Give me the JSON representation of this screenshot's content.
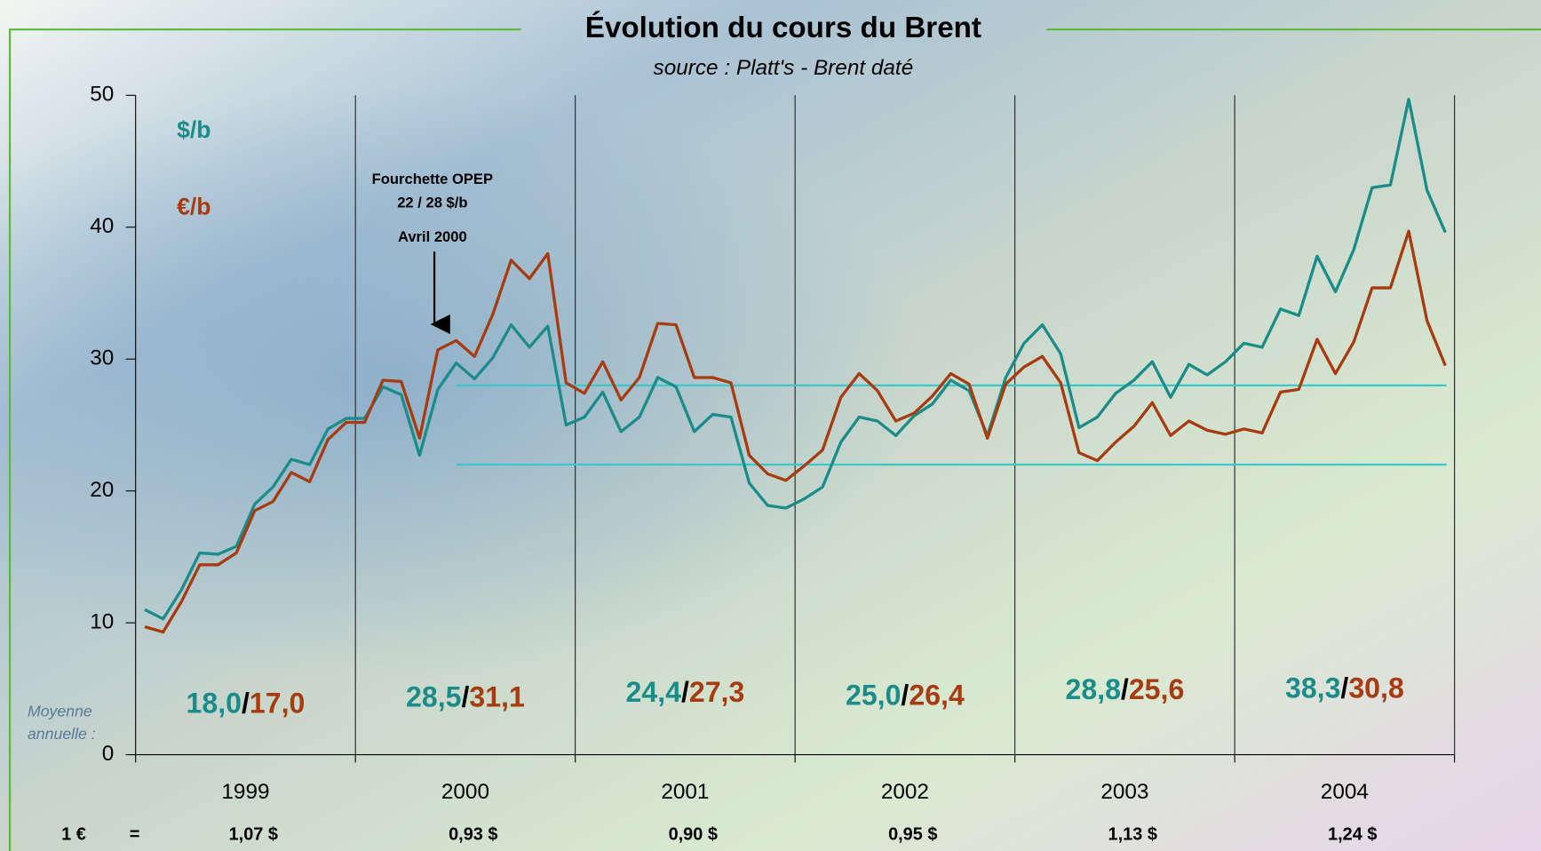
{
  "chart_data": {
    "type": "line",
    "title": "Évolution du cours du Brent",
    "subtitle": "source : Platt's - Brent daté",
    "categories": [
      "1999",
      "2000",
      "2001",
      "2002",
      "2003",
      "2004"
    ],
    "series": [
      {
        "name": "$/b",
        "color": "#1b8c8a",
        "values": [
          [
            11.0,
            10.3,
            12.5,
            15.3,
            15.2,
            15.8,
            19.0,
            20.3,
            22.4,
            22.0,
            24.7,
            25.5
          ],
          [
            25.5,
            27.9,
            27.3,
            22.7,
            27.7,
            29.7,
            28.5,
            30.1,
            32.6,
            30.9,
            32.5,
            25.0
          ],
          [
            25.6,
            27.5,
            24.5,
            25.6,
            28.6,
            27.9,
            24.5,
            25.8,
            25.6,
            20.6,
            18.9,
            18.7
          ],
          [
            19.4,
            20.3,
            23.7,
            25.6,
            25.3,
            24.2,
            25.7,
            26.6,
            28.4,
            27.6,
            24.2,
            28.6
          ],
          [
            31.2,
            32.6,
            30.4,
            24.8,
            25.6,
            27.4,
            28.4,
            29.8,
            27.1,
            29.6,
            28.8,
            29.8
          ],
          [
            31.2,
            30.9,
            33.8,
            33.3,
            37.8,
            35.1,
            38.3,
            43.0,
            43.2,
            49.7,
            42.8,
            39.6
          ]
        ]
      },
      {
        "name": "€/b",
        "color": "#a63c10",
        "values": [
          [
            9.7,
            9.3,
            11.6,
            14.4,
            14.4,
            15.3,
            18.5,
            19.2,
            21.4,
            20.7,
            23.9,
            25.2
          ],
          [
            25.2,
            28.4,
            28.3,
            24.0,
            30.7,
            31.4,
            30.2,
            33.4,
            37.5,
            36.1,
            38.0,
            28.2
          ],
          [
            27.4,
            29.8,
            26.9,
            28.6,
            32.7,
            32.6,
            28.6,
            28.6,
            28.2,
            22.7,
            21.3,
            20.8
          ],
          [
            21.9,
            23.1,
            27.1,
            28.9,
            27.6,
            25.3,
            25.9,
            27.2,
            28.9,
            28.1,
            24.0,
            28.1
          ],
          [
            29.4,
            30.2,
            28.2,
            22.9,
            22.3,
            23.7,
            24.9,
            26.7,
            24.2,
            25.3,
            24.6,
            24.3
          ],
          [
            24.7,
            24.4,
            27.5,
            27.7,
            31.5,
            28.9,
            31.3,
            35.4,
            35.4,
            39.7,
            32.9,
            29.5
          ]
        ]
      }
    ],
    "ylim": [
      0,
      50
    ],
    "yticks": [
      0,
      10,
      20,
      30,
      40,
      50
    ],
    "opec_band": {
      "values": [
        22,
        28
      ],
      "color": "#3cc8c8",
      "annotation": [
        "Fourchette OPEP",
        "22 / 28 $/b",
        "Avril 2000"
      ]
    },
    "annual_average": {
      "label": [
        "Moyenne",
        "annuelle :"
      ],
      "usd": [
        "18,0",
        "28,5",
        "24,4",
        "25,0",
        "28,8",
        "38,3"
      ],
      "separator": "/",
      "eur": [
        "17,0",
        "31,1",
        "27,3",
        "26,4",
        "25,6",
        "30,8"
      ]
    },
    "exchange_rate": {
      "label": "1 €",
      "equals": "=",
      "values": [
        "1,07 $",
        "0,93 $",
        "0,90 $",
        "0,95 $",
        "1,13 $",
        "1,24 $"
      ]
    }
  }
}
